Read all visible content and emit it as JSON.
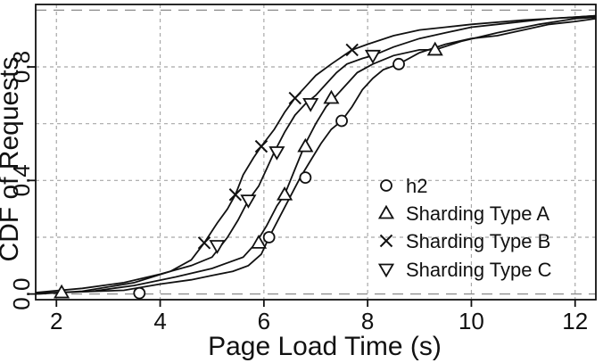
{
  "chart_data": {
    "type": "line",
    "title": "",
    "xlabel": "Page Load Time (s)",
    "ylabel": "CDF of Requests",
    "xlim": [
      1.6,
      12.4
    ],
    "ylim": [
      -0.02,
      1.02
    ],
    "xticks": [
      2,
      4,
      6,
      8,
      10,
      12
    ],
    "xtick_labels": [
      "2",
      "4",
      "6",
      "8",
      "10",
      "12"
    ],
    "yticks": [
      0.0,
      0.4,
      0.8
    ],
    "ytick_labels": [
      "0.0",
      "0.4",
      "0.8"
    ],
    "ygrid": [
      0.0,
      0.2,
      0.4,
      0.6,
      0.8,
      1.0
    ],
    "reference_lines": [
      0.0,
      1.0
    ],
    "grid": true,
    "legend_position": "bottom-right",
    "series": [
      {
        "name": "h2",
        "marker": "circle",
        "points": [
          [
            1.6,
            0.003
          ],
          [
            2.5,
            0.008
          ],
          [
            3.3,
            0.013
          ],
          [
            4.0,
            0.035
          ],
          [
            4.6,
            0.05
          ],
          [
            5.0,
            0.065
          ],
          [
            5.4,
            0.08
          ],
          [
            5.7,
            0.1
          ],
          [
            5.95,
            0.14
          ],
          [
            6.1,
            0.2
          ],
          [
            6.3,
            0.27
          ],
          [
            6.5,
            0.34
          ],
          [
            6.7,
            0.41
          ],
          [
            6.9,
            0.47
          ],
          [
            7.1,
            0.53
          ],
          [
            7.3,
            0.58
          ],
          [
            7.5,
            0.61
          ],
          [
            7.7,
            0.66
          ],
          [
            7.9,
            0.72
          ],
          [
            8.1,
            0.76
          ],
          [
            8.3,
            0.79
          ],
          [
            8.6,
            0.81
          ],
          [
            9.0,
            0.85
          ],
          [
            9.5,
            0.88
          ],
          [
            10.0,
            0.9
          ],
          [
            10.5,
            0.91
          ],
          [
            11.0,
            0.93
          ],
          [
            11.5,
            0.95
          ],
          [
            12.0,
            0.96
          ],
          [
            12.4,
            0.97
          ]
        ],
        "markers": [
          [
            3.6,
            0.003
          ],
          [
            6.1,
            0.2
          ],
          [
            6.8,
            0.41
          ],
          [
            7.5,
            0.61
          ],
          [
            8.6,
            0.81
          ]
        ]
      },
      {
        "name": "Sharding Type A",
        "marker": "triangle-up",
        "points": [
          [
            1.6,
            0.0
          ],
          [
            2.1,
            0.005
          ],
          [
            2.7,
            0.01
          ],
          [
            3.5,
            0.03
          ],
          [
            4.3,
            0.06
          ],
          [
            5.0,
            0.09
          ],
          [
            5.6,
            0.13
          ],
          [
            5.85,
            0.18
          ],
          [
            6.05,
            0.24
          ],
          [
            6.25,
            0.31
          ],
          [
            6.4,
            0.35
          ],
          [
            6.6,
            0.44
          ],
          [
            6.8,
            0.53
          ],
          [
            7.0,
            0.6
          ],
          [
            7.2,
            0.66
          ],
          [
            7.4,
            0.7
          ],
          [
            7.6,
            0.74
          ],
          [
            7.8,
            0.78
          ],
          [
            8.1,
            0.81
          ],
          [
            8.5,
            0.84
          ],
          [
            9.0,
            0.86
          ],
          [
            9.3,
            0.86
          ],
          [
            9.8,
            0.89
          ],
          [
            10.5,
            0.92
          ],
          [
            11.3,
            0.95
          ],
          [
            12.0,
            0.97
          ],
          [
            12.4,
            0.975
          ]
        ],
        "markers": [
          [
            2.1,
            0.005
          ],
          [
            5.9,
            0.18
          ],
          [
            6.4,
            0.35
          ],
          [
            6.8,
            0.52
          ],
          [
            7.3,
            0.69
          ],
          [
            9.3,
            0.86
          ]
        ]
      },
      {
        "name": "Sharding Type B",
        "marker": "x",
        "points": [
          [
            1.6,
            0.0
          ],
          [
            2.5,
            0.01
          ],
          [
            3.5,
            0.04
          ],
          [
            4.2,
            0.08
          ],
          [
            4.6,
            0.12
          ],
          [
            4.85,
            0.18
          ],
          [
            5.1,
            0.25
          ],
          [
            5.3,
            0.3
          ],
          [
            5.45,
            0.35
          ],
          [
            5.6,
            0.42
          ],
          [
            5.8,
            0.48
          ],
          [
            5.95,
            0.52
          ],
          [
            6.2,
            0.58
          ],
          [
            6.4,
            0.64
          ],
          [
            6.6,
            0.69
          ],
          [
            6.8,
            0.73
          ],
          [
            7.0,
            0.77
          ],
          [
            7.3,
            0.81
          ],
          [
            7.7,
            0.86
          ],
          [
            8.0,
            0.88
          ],
          [
            8.5,
            0.91
          ],
          [
            9.0,
            0.93
          ],
          [
            9.5,
            0.94
          ],
          [
            10.0,
            0.95
          ],
          [
            11.0,
            0.965
          ],
          [
            12.0,
            0.975
          ],
          [
            12.4,
            0.98
          ]
        ],
        "markers": [
          [
            4.85,
            0.18
          ],
          [
            5.45,
            0.35
          ],
          [
            5.95,
            0.52
          ],
          [
            6.6,
            0.69
          ],
          [
            7.7,
            0.86
          ]
        ]
      },
      {
        "name": "Sharding Type C",
        "marker": "triangle-down",
        "points": [
          [
            1.6,
            0.005
          ],
          [
            2.5,
            0.02
          ],
          [
            3.3,
            0.04
          ],
          [
            4.0,
            0.07
          ],
          [
            4.6,
            0.1
          ],
          [
            5.0,
            0.13
          ],
          [
            5.3,
            0.2
          ],
          [
            5.5,
            0.26
          ],
          [
            5.7,
            0.33
          ],
          [
            5.9,
            0.38
          ],
          [
            6.05,
            0.44
          ],
          [
            6.2,
            0.5
          ],
          [
            6.4,
            0.57
          ],
          [
            6.6,
            0.63
          ],
          [
            6.8,
            0.67
          ],
          [
            7.0,
            0.7
          ],
          [
            7.2,
            0.74
          ],
          [
            7.4,
            0.78
          ],
          [
            7.6,
            0.81
          ],
          [
            7.9,
            0.83
          ],
          [
            8.1,
            0.84
          ],
          [
            8.5,
            0.87
          ],
          [
            9.0,
            0.9
          ],
          [
            9.5,
            0.92
          ],
          [
            10.0,
            0.94
          ],
          [
            10.5,
            0.95
          ],
          [
            11.0,
            0.96
          ],
          [
            11.5,
            0.97
          ],
          [
            12.4,
            0.98
          ]
        ],
        "markers": [
          [
            5.1,
            0.17
          ],
          [
            5.7,
            0.33
          ],
          [
            6.25,
            0.5
          ],
          [
            6.9,
            0.67
          ],
          [
            8.1,
            0.84
          ]
        ]
      }
    ]
  }
}
